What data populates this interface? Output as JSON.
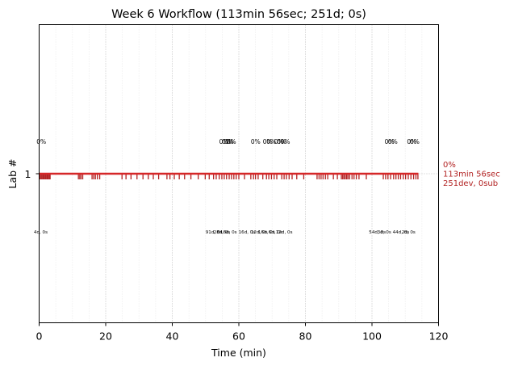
{
  "chart_data": {
    "type": "event-timeline",
    "title": "Week 6 Workflow (113min 56sec; 251d; 0s)",
    "xlabel": "Time (min)",
    "ylabel": "Lab #",
    "xlim": [
      0,
      120
    ],
    "xticks": [
      0,
      20,
      40,
      60,
      80,
      100,
      120
    ],
    "yticks": [
      {
        "value": 1,
        "label": "1"
      }
    ],
    "grid": {
      "major_x": true,
      "minor_x": true,
      "major_every": 20,
      "minor_every": 5
    },
    "colors": {
      "events": "#b22222",
      "lane": "#d62728",
      "grid": "#b0b0b0",
      "minor_grid": "#e6e6e6",
      "summary": "#b22222"
    },
    "lanes": [
      {
        "lab": 1,
        "span": [
          0,
          113.93
        ],
        "summary": [
          "0%",
          "113min 56sec",
          "251dev, 0sub"
        ],
        "events": [
          0.3,
          0.6,
          0.9,
          1.2,
          1.5,
          1.8,
          2.1,
          2.4,
          2.7,
          3.0,
          3.3,
          11.8,
          12.2,
          12.6,
          13.1,
          15.9,
          16.4,
          16.9,
          17.5,
          18.2,
          24.9,
          26.1,
          27.6,
          29.4,
          31.2,
          32.8,
          34.3,
          35.9,
          38.4,
          39.3,
          40.6,
          42.1,
          43.7,
          45.6,
          47.8,
          49.9,
          51.1,
          52.4,
          53.2,
          54.1,
          54.9,
          55.6,
          56.3,
          57.1,
          57.8,
          58.5,
          59.2,
          60.0,
          61.7,
          63.6,
          64.4,
          65.0,
          65.8,
          67.2,
          68.3,
          69.0,
          69.8,
          70.6,
          71.4,
          72.9,
          73.6,
          74.3,
          75.1,
          76.0,
          77.4,
          79.5,
          83.5,
          84.1,
          84.7,
          85.3,
          86.0,
          86.7,
          88.4,
          89.6,
          90.8,
          91.2,
          91.6,
          92.0,
          92.4,
          92.8,
          93.3,
          94.0,
          94.6,
          95.3,
          96.1,
          98.3,
          103.4,
          104.1,
          104.8,
          105.6,
          106.5,
          107.2,
          107.9,
          108.6,
          109.4,
          110.1,
          110.9,
          111.7,
          112.5,
          113.2,
          113.8
        ],
        "top_labels": [
          {
            "x": -0.8,
            "text": "0%"
          },
          {
            "x": 54.1,
            "text": "0%"
          },
          {
            "x": 54.9,
            "text": "0%"
          },
          {
            "x": 55.6,
            "text": "0%"
          },
          {
            "x": 56.3,
            "text": "0%"
          },
          {
            "x": 63.6,
            "text": "0%"
          },
          {
            "x": 67.2,
            "text": "0%"
          },
          {
            "x": 68.3,
            "text": "0%"
          },
          {
            "x": 70.6,
            "text": "0%"
          },
          {
            "x": 71.4,
            "text": "0%"
          },
          {
            "x": 72.5,
            "text": "0%"
          },
          {
            "x": 103.8,
            "text": "0%"
          },
          {
            "x": 104.8,
            "text": "0%"
          },
          {
            "x": 110.5,
            "text": "0%"
          },
          {
            "x": 111.4,
            "text": "0%"
          }
        ],
        "bottom_labels": [
          {
            "x": -1.6,
            "text": "4d, 0s"
          },
          {
            "x": 50.0,
            "text": "91d, 0s"
          },
          {
            "x": 52.4,
            "text": "28d, 0s"
          },
          {
            "x": 54.4,
            "text": "16d, 0s"
          },
          {
            "x": 59.9,
            "text": "16d, 0s"
          },
          {
            "x": 63.6,
            "text": "12d, 0s"
          },
          {
            "x": 65.8,
            "text": "16d, 0s"
          },
          {
            "x": 68.9,
            "text": "6d, 0s"
          },
          {
            "x": 71.1,
            "text": "12d, 0s"
          },
          {
            "x": 99.1,
            "text": "54d, 0s"
          },
          {
            "x": 101.6,
            "text": "3d, 0s"
          },
          {
            "x": 106.2,
            "text": "44d, 0s"
          },
          {
            "x": 108.9,
            "text": "2d, 0s"
          }
        ]
      }
    ]
  }
}
